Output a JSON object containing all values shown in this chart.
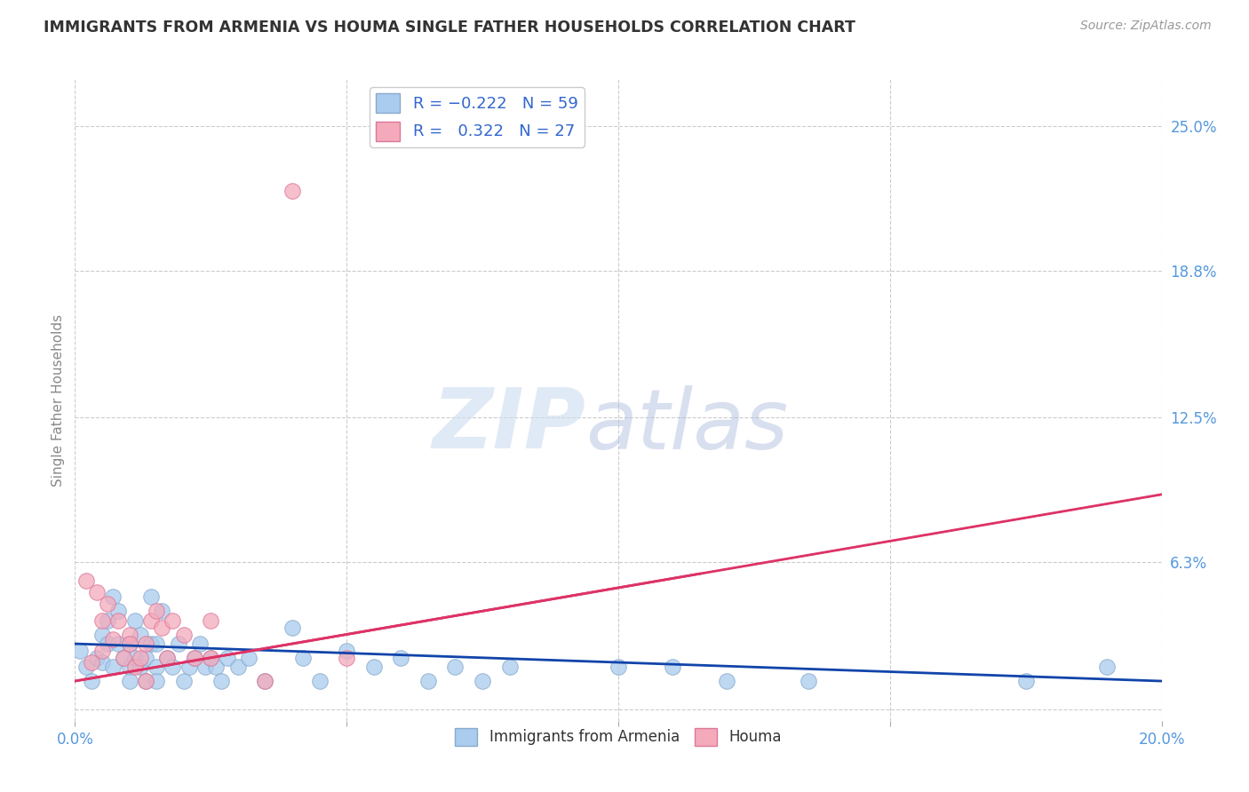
{
  "title": "IMMIGRANTS FROM ARMENIA VS HOUMA SINGLE FATHER HOUSEHOLDS CORRELATION CHART",
  "source": "Source: ZipAtlas.com",
  "ylabel": "Single Father Households",
  "x_min": 0.0,
  "x_max": 0.2,
  "y_min": -0.005,
  "y_max": 0.27,
  "x_ticks": [
    0.0,
    0.05,
    0.1,
    0.15,
    0.2
  ],
  "x_tick_labels": [
    "0.0%",
    "",
    "",
    "",
    "20.0%"
  ],
  "y_tick_labels_right": [
    "25.0%",
    "18.8%",
    "12.5%",
    "6.3%",
    ""
  ],
  "y_tick_values_right": [
    0.25,
    0.188,
    0.125,
    0.063,
    0.0
  ],
  "series": [
    {
      "name": "Immigrants from Armenia",
      "color": "#aaccee",
      "edge_color": "#88aacc",
      "line_color": "#1144aa",
      "line_x": [
        0.0,
        0.2
      ],
      "line_y": [
        0.028,
        0.012
      ],
      "points": [
        [
          0.001,
          0.025
        ],
        [
          0.002,
          0.018
        ],
        [
          0.003,
          0.012
        ],
        [
          0.004,
          0.022
        ],
        [
          0.005,
          0.032
        ],
        [
          0.005,
          0.02
        ],
        [
          0.006,
          0.038
        ],
        [
          0.006,
          0.028
        ],
        [
          0.007,
          0.048
        ],
        [
          0.007,
          0.018
        ],
        [
          0.008,
          0.042
        ],
        [
          0.008,
          0.028
        ],
        [
          0.009,
          0.022
        ],
        [
          0.01,
          0.018
        ],
        [
          0.01,
          0.012
        ],
        [
          0.01,
          0.028
        ],
        [
          0.011,
          0.038
        ],
        [
          0.011,
          0.022
        ],
        [
          0.012,
          0.032
        ],
        [
          0.012,
          0.018
        ],
        [
          0.013,
          0.012
        ],
        [
          0.013,
          0.022
        ],
        [
          0.014,
          0.048
        ],
        [
          0.014,
          0.028
        ],
        [
          0.015,
          0.018
        ],
        [
          0.015,
          0.012
        ],
        [
          0.015,
          0.028
        ],
        [
          0.016,
          0.042
        ],
        [
          0.017,
          0.022
        ],
        [
          0.018,
          0.018
        ],
        [
          0.019,
          0.028
        ],
        [
          0.02,
          0.012
        ],
        [
          0.021,
          0.018
        ],
        [
          0.022,
          0.022
        ],
        [
          0.023,
          0.028
        ],
        [
          0.024,
          0.018
        ],
        [
          0.025,
          0.022
        ],
        [
          0.026,
          0.018
        ],
        [
          0.027,
          0.012
        ],
        [
          0.028,
          0.022
        ],
        [
          0.03,
          0.018
        ],
        [
          0.032,
          0.022
        ],
        [
          0.035,
          0.012
        ],
        [
          0.04,
          0.035
        ],
        [
          0.042,
          0.022
        ],
        [
          0.045,
          0.012
        ],
        [
          0.05,
          0.025
        ],
        [
          0.055,
          0.018
        ],
        [
          0.06,
          0.022
        ],
        [
          0.065,
          0.012
        ],
        [
          0.07,
          0.018
        ],
        [
          0.075,
          0.012
        ],
        [
          0.08,
          0.018
        ],
        [
          0.1,
          0.018
        ],
        [
          0.11,
          0.018
        ],
        [
          0.12,
          0.012
        ],
        [
          0.135,
          0.012
        ],
        [
          0.175,
          0.012
        ],
        [
          0.19,
          0.018
        ]
      ]
    },
    {
      "name": "Houma",
      "color": "#f4aabb",
      "edge_color": "#dd7799",
      "line_color": "#dd3366",
      "line_x": [
        0.0,
        0.2
      ],
      "line_y": [
        0.012,
        0.092
      ],
      "points": [
        [
          0.002,
          0.055
        ],
        [
          0.003,
          0.02
        ],
        [
          0.004,
          0.05
        ],
        [
          0.005,
          0.038
        ],
        [
          0.005,
          0.025
        ],
        [
          0.006,
          0.045
        ],
        [
          0.007,
          0.03
        ],
        [
          0.008,
          0.038
        ],
        [
          0.009,
          0.022
        ],
        [
          0.01,
          0.032
        ],
        [
          0.01,
          0.028
        ],
        [
          0.011,
          0.018
        ],
        [
          0.012,
          0.022
        ],
        [
          0.013,
          0.012
        ],
        [
          0.013,
          0.028
        ],
        [
          0.014,
          0.038
        ],
        [
          0.015,
          0.042
        ],
        [
          0.016,
          0.035
        ],
        [
          0.017,
          0.022
        ],
        [
          0.018,
          0.038
        ],
        [
          0.02,
          0.032
        ],
        [
          0.022,
          0.022
        ],
        [
          0.025,
          0.022
        ],
        [
          0.025,
          0.038
        ],
        [
          0.035,
          0.012
        ],
        [
          0.05,
          0.022
        ],
        [
          0.04,
          0.222
        ]
      ]
    }
  ],
  "watermark_zip": "ZIP",
  "watermark_atlas": "atlas",
  "background_color": "#ffffff",
  "grid_color": "#cccccc",
  "title_color": "#333333",
  "axis_label_color": "#5599dd",
  "right_tick_color": "#5599dd",
  "legend_text_color": "#3366cc",
  "bottom_legend_color": "#333333"
}
